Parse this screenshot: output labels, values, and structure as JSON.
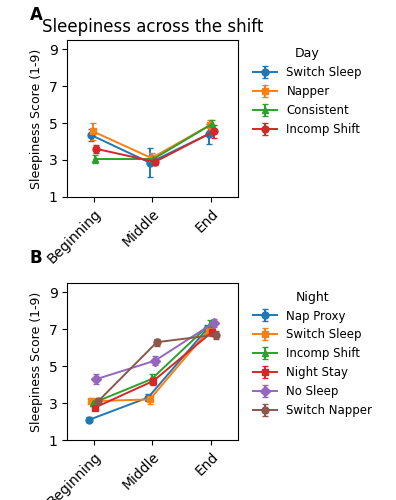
{
  "chart_data": [
    {
      "type": "line",
      "title": "Sleepiness across the shift",
      "annotations": [
        "A"
      ],
      "categories": [
        "Beginning",
        "Middle",
        "End"
      ],
      "y_label": "Sleepiness Score (1-9)",
      "ylim": [
        1,
        9.5
      ],
      "yticks": [
        1,
        3,
        5,
        7,
        9
      ],
      "legend": "upper left",
      "legend_title": "Day",
      "series": [
        {
          "name": "Switch Sleep",
          "marker": "o",
          "values": [
            4.35,
            2.85,
            4.4
          ],
          "errors": [
            0.35,
            0.8,
            0.55
          ]
        },
        {
          "name": "Napper",
          "marker": "s",
          "values": [
            4.55,
            3.1,
            4.9
          ],
          "errors": [
            0.45,
            0.25,
            0.25
          ]
        },
        {
          "name": "Consistent",
          "marker": "^",
          "values": [
            3.05,
            3.05,
            4.95
          ],
          "errors": [
            0.2,
            0.2,
            0.2
          ]
        },
        {
          "name": "Incomp Shift",
          "marker": "o",
          "values": [
            3.6,
            2.9,
            4.55
          ],
          "errors": [
            0.2,
            0.2,
            0.35
          ]
        }
      ]
    },
    {
      "type": "line",
      "annotations": [
        "B"
      ],
      "categories": [
        "Beginning",
        "Middle",
        "End"
      ],
      "y_label": "Sleepiness Score (1-9)",
      "ylim": [
        1,
        9.5
      ],
      "yticks": [
        1,
        3,
        5,
        7,
        9
      ],
      "legend": "upper left",
      "legend_title": "Night",
      "series": [
        {
          "name": "Nap Proxy",
          "marker": "o",
          "values": [
            2.1,
            3.3,
            7.0
          ],
          "errors": [
            0.15,
            0.2,
            0.25
          ]
        },
        {
          "name": "Switch Sleep",
          "marker": "s",
          "values": [
            3.1,
            3.2,
            6.95
          ],
          "errors": [
            0.15,
            0.25,
            0.2
          ]
        },
        {
          "name": "Incomp Shift",
          "marker": "^",
          "values": [
            3.0,
            4.3,
            7.3
          ],
          "errors": [
            0.15,
            0.25,
            0.2
          ]
        },
        {
          "name": "Night Stay",
          "marker": "s",
          "values": [
            2.75,
            4.2,
            6.85
          ],
          "errors": [
            0.15,
            0.2,
            0.2
          ]
        },
        {
          "name": "No Sleep",
          "marker": "D",
          "values": [
            4.3,
            5.3,
            7.35
          ],
          "errors": [
            0.25,
            0.25,
            0.2
          ]
        },
        {
          "name": "Switch Napper",
          "marker": "o",
          "values": [
            3.1,
            6.3,
            6.7
          ],
          "errors": [
            0.15,
            0.2,
            0.2
          ]
        }
      ]
    }
  ]
}
